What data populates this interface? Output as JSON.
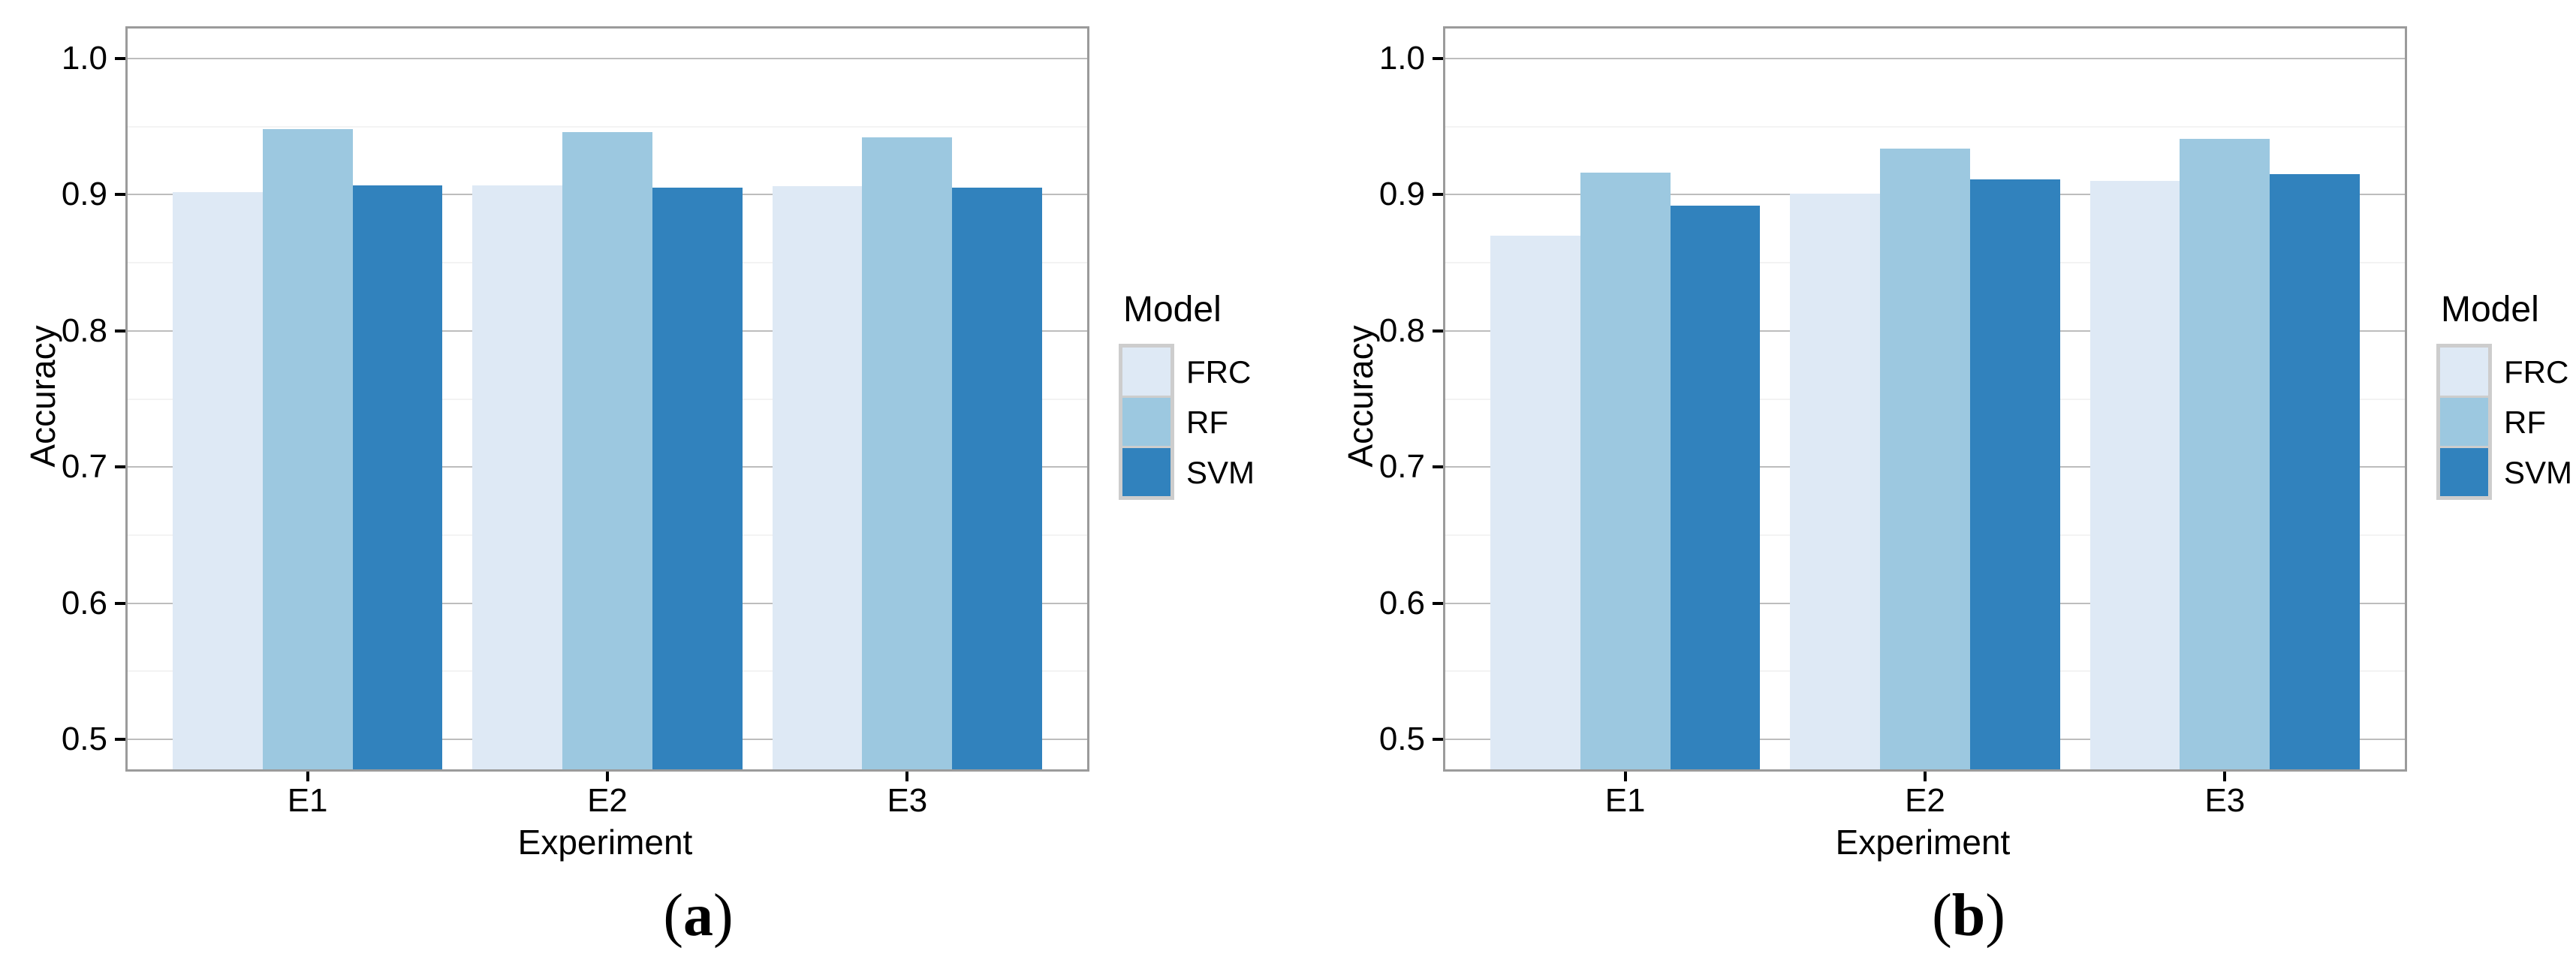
{
  "figure": {
    "background": "#ffffff",
    "panel_border_color": "#9b9b9b",
    "grid_major_color": "#bdbdbd",
    "grid_minor_color": "#f3f3f3",
    "tick_color": "#000000"
  },
  "legend": {
    "title": "Model",
    "entries": [
      {
        "label": "FRC",
        "color": "#dee9f5"
      },
      {
        "label": "RF",
        "color": "#9cc8e0"
      },
      {
        "label": "SVM",
        "color": "#3182bd"
      }
    ],
    "frame_color": "#cdcdcd",
    "position": "right"
  },
  "chart_data": [
    {
      "type": "bar",
      "caption_open": "(",
      "caption_letter": "a",
      "caption_close": ")",
      "title": "",
      "xlabel": "Experiment",
      "ylabel": "Accuracy",
      "categories": [
        "E1",
        "E2",
        "E3"
      ],
      "category_positions": [
        1,
        2,
        3
      ],
      "x_domain": [
        0.4,
        3.6
      ],
      "bar_width_units": 0.3,
      "series": [
        {
          "name": "FRC",
          "color": "#dee9f5",
          "values": [
            0.902,
            0.907,
            0.906
          ]
        },
        {
          "name": "RF",
          "color": "#9cc8e0",
          "values": [
            0.948,
            0.946,
            0.942
          ]
        },
        {
          "name": "SVM",
          "color": "#3182bd",
          "values": [
            0.907,
            0.905,
            0.905
          ]
        }
      ],
      "ylim": [
        0.478,
        1.022
      ],
      "yticks": [
        0.5,
        0.6,
        0.7,
        0.8,
        0.9,
        1.0
      ],
      "ytick_labels": [
        "0.5",
        "0.6",
        "0.7",
        "0.8",
        "0.9",
        "1.0"
      ],
      "yticks_minor": [
        0.55,
        0.65,
        0.75,
        0.85,
        0.95
      ],
      "grid": true,
      "legend_position": "right"
    },
    {
      "type": "bar",
      "caption_open": "(",
      "caption_letter": "b",
      "caption_close": ")",
      "title": "",
      "xlabel": "Experiment",
      "ylabel": "Accuracy",
      "categories": [
        "E1",
        "E2",
        "E3"
      ],
      "category_positions": [
        1,
        2,
        3
      ],
      "x_domain": [
        0.4,
        3.6
      ],
      "bar_width_units": 0.3,
      "series": [
        {
          "name": "FRC",
          "color": "#dee9f5",
          "values": [
            0.87,
            0.901,
            0.91
          ]
        },
        {
          "name": "RF",
          "color": "#9cc8e0",
          "values": [
            0.916,
            0.934,
            0.941
          ]
        },
        {
          "name": "SVM",
          "color": "#3182bd",
          "values": [
            0.892,
            0.911,
            0.915
          ]
        }
      ],
      "ylim": [
        0.478,
        1.022
      ],
      "yticks": [
        0.5,
        0.6,
        0.7,
        0.8,
        0.9,
        1.0
      ],
      "ytick_labels": [
        "0.5",
        "0.6",
        "0.7",
        "0.8",
        "0.9",
        "1.0"
      ],
      "yticks_minor": [
        0.55,
        0.65,
        0.75,
        0.85,
        0.95
      ],
      "grid": true,
      "legend_position": "right"
    }
  ]
}
